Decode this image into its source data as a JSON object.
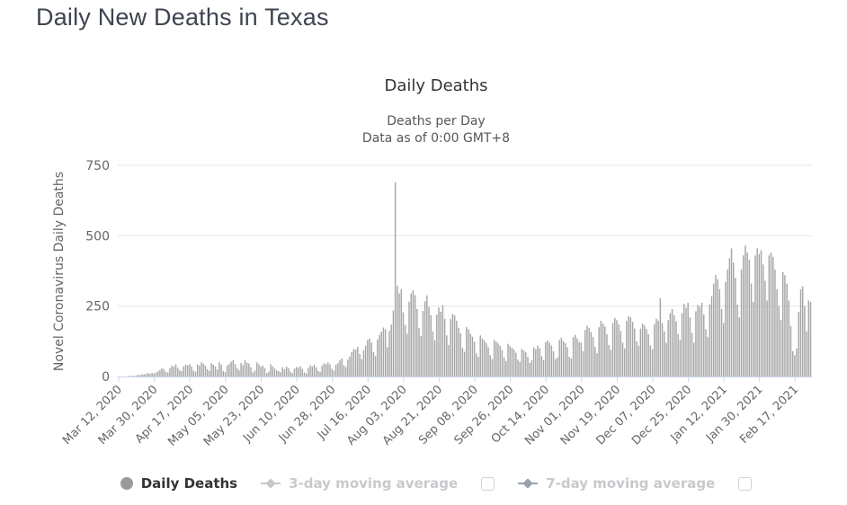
{
  "page": {
    "title": "Daily New Deaths in Texas"
  },
  "legend": {
    "items": [
      {
        "label": "Daily Deaths",
        "marker": "circle",
        "active": true
      },
      {
        "label": "3-day moving average",
        "marker": "line-diamond",
        "active": false,
        "checkbox_checked": false
      },
      {
        "label": "7-day moving average",
        "marker": "line-diamond",
        "active": false,
        "checkbox_checked": false
      }
    ],
    "colors": {
      "active_text": "#333333",
      "disabled_text": "#c9c9cd",
      "circle_marker": "#9a9a9a",
      "marker_3day": "#c6c9ce",
      "marker_7day": "#9aa1a8"
    }
  },
  "chart_data": {
    "type": "bar",
    "title": "Daily Deaths",
    "subtitle_line1": "Deaths per Day",
    "subtitle_line2": "Data as of 0:00 GMT+8",
    "ylabel": "Novel Coronavirus Daily Deaths",
    "xlabel": "",
    "ylim": [
      0,
      750
    ],
    "yticks": [
      0,
      250,
      500,
      750
    ],
    "grid": true,
    "legend_position": "bottom",
    "x_start_label": "Mar 12, 2020",
    "x_tick_interval_days": 18,
    "x_tick_labels": [
      "Mar 12, 2020",
      "Mar 30, 2020",
      "Apr 17, 2020",
      "May 05, 2020",
      "May 23, 2020",
      "Jun 10, 2020",
      "Jun 28, 2020",
      "Jul 16, 2020",
      "Aug 03, 2020",
      "Aug 21, 2020",
      "Sep 08, 2020",
      "Sep 26, 2020",
      "Oct 14, 2020",
      "Nov 01, 2020",
      "Nov 19, 2020",
      "Dec 07, 2020",
      "Dec 25, 2020",
      "Jan 12, 2021",
      "Jan 30, 2021",
      "Feb 17, 2021"
    ],
    "values": [
      0,
      0,
      1,
      0,
      1,
      2,
      1,
      3,
      2,
      4,
      6,
      5,
      8,
      7,
      10,
      12,
      9,
      13,
      11,
      14,
      18,
      23,
      30,
      26,
      17,
      14,
      29,
      38,
      35,
      43,
      31,
      22,
      19,
      36,
      42,
      40,
      44,
      35,
      21,
      17,
      43,
      39,
      50,
      45,
      38,
      26,
      20,
      47,
      42,
      36,
      25,
      50,
      42,
      19,
      16,
      39,
      45,
      53,
      58,
      44,
      30,
      22,
      48,
      40,
      58,
      49,
      46,
      33,
      14,
      21,
      50,
      43,
      35,
      39,
      30,
      12,
      17,
      44,
      36,
      29,
      22,
      19,
      15,
      33,
      26,
      35,
      30,
      17,
      12,
      28,
      34,
      31,
      36,
      27,
      15,
      11,
      30,
      40,
      35,
      42,
      33,
      20,
      16,
      39,
      47,
      44,
      50,
      43,
      27,
      21,
      42,
      48,
      58,
      64,
      40,
      34,
      60,
      71,
      87,
      98,
      95,
      105,
      80,
      62,
      93,
      110,
      129,
      135,
      120,
      86,
      72,
      131,
      148,
      160,
      174,
      168,
      104,
      162,
      184,
      235,
      690,
      322,
      295,
      310,
      228,
      184,
      152,
      266,
      295,
      307,
      289,
      240,
      172,
      144,
      233,
      267,
      288,
      247,
      218,
      160,
      128,
      220,
      245,
      230,
      253,
      205,
      146,
      112,
      204,
      222,
      217,
      198,
      173,
      154,
      102,
      88,
      176,
      168,
      152,
      141,
      123,
      82,
      70,
      146,
      135,
      128,
      119,
      104,
      76,
      62,
      130,
      124,
      118,
      109,
      94,
      68,
      55,
      116,
      108,
      102,
      96,
      84,
      60,
      52,
      98,
      92,
      86,
      70,
      48,
      58,
      104,
      97,
      110,
      100,
      72,
      58,
      122,
      128,
      120,
      110,
      90,
      62,
      68,
      130,
      138,
      126,
      118,
      104,
      70,
      64,
      140,
      148,
      135,
      122,
      120,
      90,
      165,
      180,
      172,
      158,
      140,
      105,
      82,
      175,
      198,
      188,
      178,
      150,
      112,
      95,
      190,
      208,
      200,
      185,
      162,
      120,
      100,
      198,
      215,
      210,
      194,
      170,
      125,
      110,
      170,
      188,
      182,
      168,
      150,
      110,
      96,
      186,
      205,
      198,
      278,
      190,
      160,
      120,
      200,
      225,
      240,
      218,
      196,
      150,
      130,
      225,
      258,
      244,
      262,
      210,
      155,
      120,
      232,
      255,
      248,
      262,
      220,
      168,
      140,
      256,
      285,
      330,
      360,
      345,
      310,
      240,
      190,
      335,
      380,
      420,
      455,
      405,
      350,
      255,
      210,
      380,
      430,
      465,
      440,
      415,
      330,
      265,
      430,
      455,
      435,
      448,
      398,
      340,
      270,
      430,
      440,
      425,
      380,
      310,
      250,
      200,
      370,
      360,
      330,
      270,
      180,
      90,
      75,
      100,
      230,
      310,
      320,
      250,
      160,
      270,
      265
    ],
    "colors": {
      "bar": "#a5a5a5",
      "grid": "#e6e6e6",
      "axis_line": "#ccd6eb",
      "text": "#666666",
      "title_text": "#333333",
      "subtitle_text": "#555759"
    }
  }
}
